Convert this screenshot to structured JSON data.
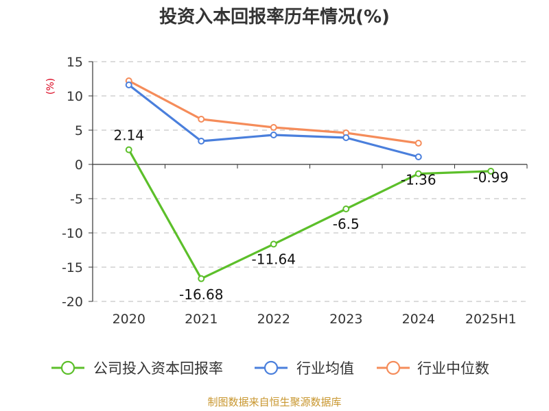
{
  "chart_data": {
    "type": "line",
    "title": "投资入本回报率历年情况(%)",
    "ylabel": "(%)",
    "categories": [
      "2020",
      "2021",
      "2022",
      "2023",
      "2024",
      "2025H1"
    ],
    "ylim": [
      -20,
      15
    ],
    "yticks": [
      15,
      10,
      5,
      0,
      -5,
      -10,
      -15,
      -20
    ],
    "grid": true,
    "legend_position": "bottom",
    "series": [
      {
        "name": "公司投入资本回报率",
        "color": "#5cbf2a",
        "values": [
          2.14,
          -16.68,
          -11.64,
          -6.5,
          -1.36,
          -0.99
        ],
        "labels": [
          "2.14",
          "-16.68",
          "-11.64",
          "-6.5",
          "-1.36",
          "-0.99"
        ]
      },
      {
        "name": "行业均值",
        "color": "#4a7fdc",
        "values": [
          11.6,
          3.4,
          4.3,
          3.9,
          1.1,
          null
        ]
      },
      {
        "name": "行业中位数",
        "color": "#f58c5a",
        "values": [
          12.2,
          6.6,
          5.4,
          4.6,
          3.1,
          null
        ]
      }
    ],
    "source": "制图数据来自恒生聚源数据库"
  }
}
